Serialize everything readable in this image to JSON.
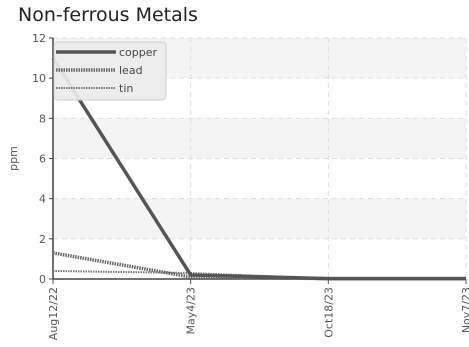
{
  "chart_data": {
    "type": "line",
    "title": "Non-ferrous Metals",
    "xlabel": "",
    "ylabel": "ppm",
    "x": [
      "Aug12/22",
      "May4/23",
      "Oct18/23",
      "Nov7/23"
    ],
    "ylim": [
      0,
      12
    ],
    "yticks": [
      0,
      2,
      4,
      6,
      8,
      10,
      12
    ],
    "grid": true,
    "legend_position": "top-left",
    "series": [
      {
        "name": "copper",
        "values": [
          11,
          0.2,
          0.02,
          0.02
        ],
        "color": "#555555",
        "style": "solid"
      },
      {
        "name": "lead",
        "values": [
          1.3,
          0.1,
          0.02,
          0.02
        ],
        "color": "#666666",
        "style": "dotted"
      },
      {
        "name": "tin",
        "values": [
          0.4,
          0.3,
          0.02,
          0.02
        ],
        "color": "#777777",
        "style": "dotted-fine"
      }
    ]
  }
}
